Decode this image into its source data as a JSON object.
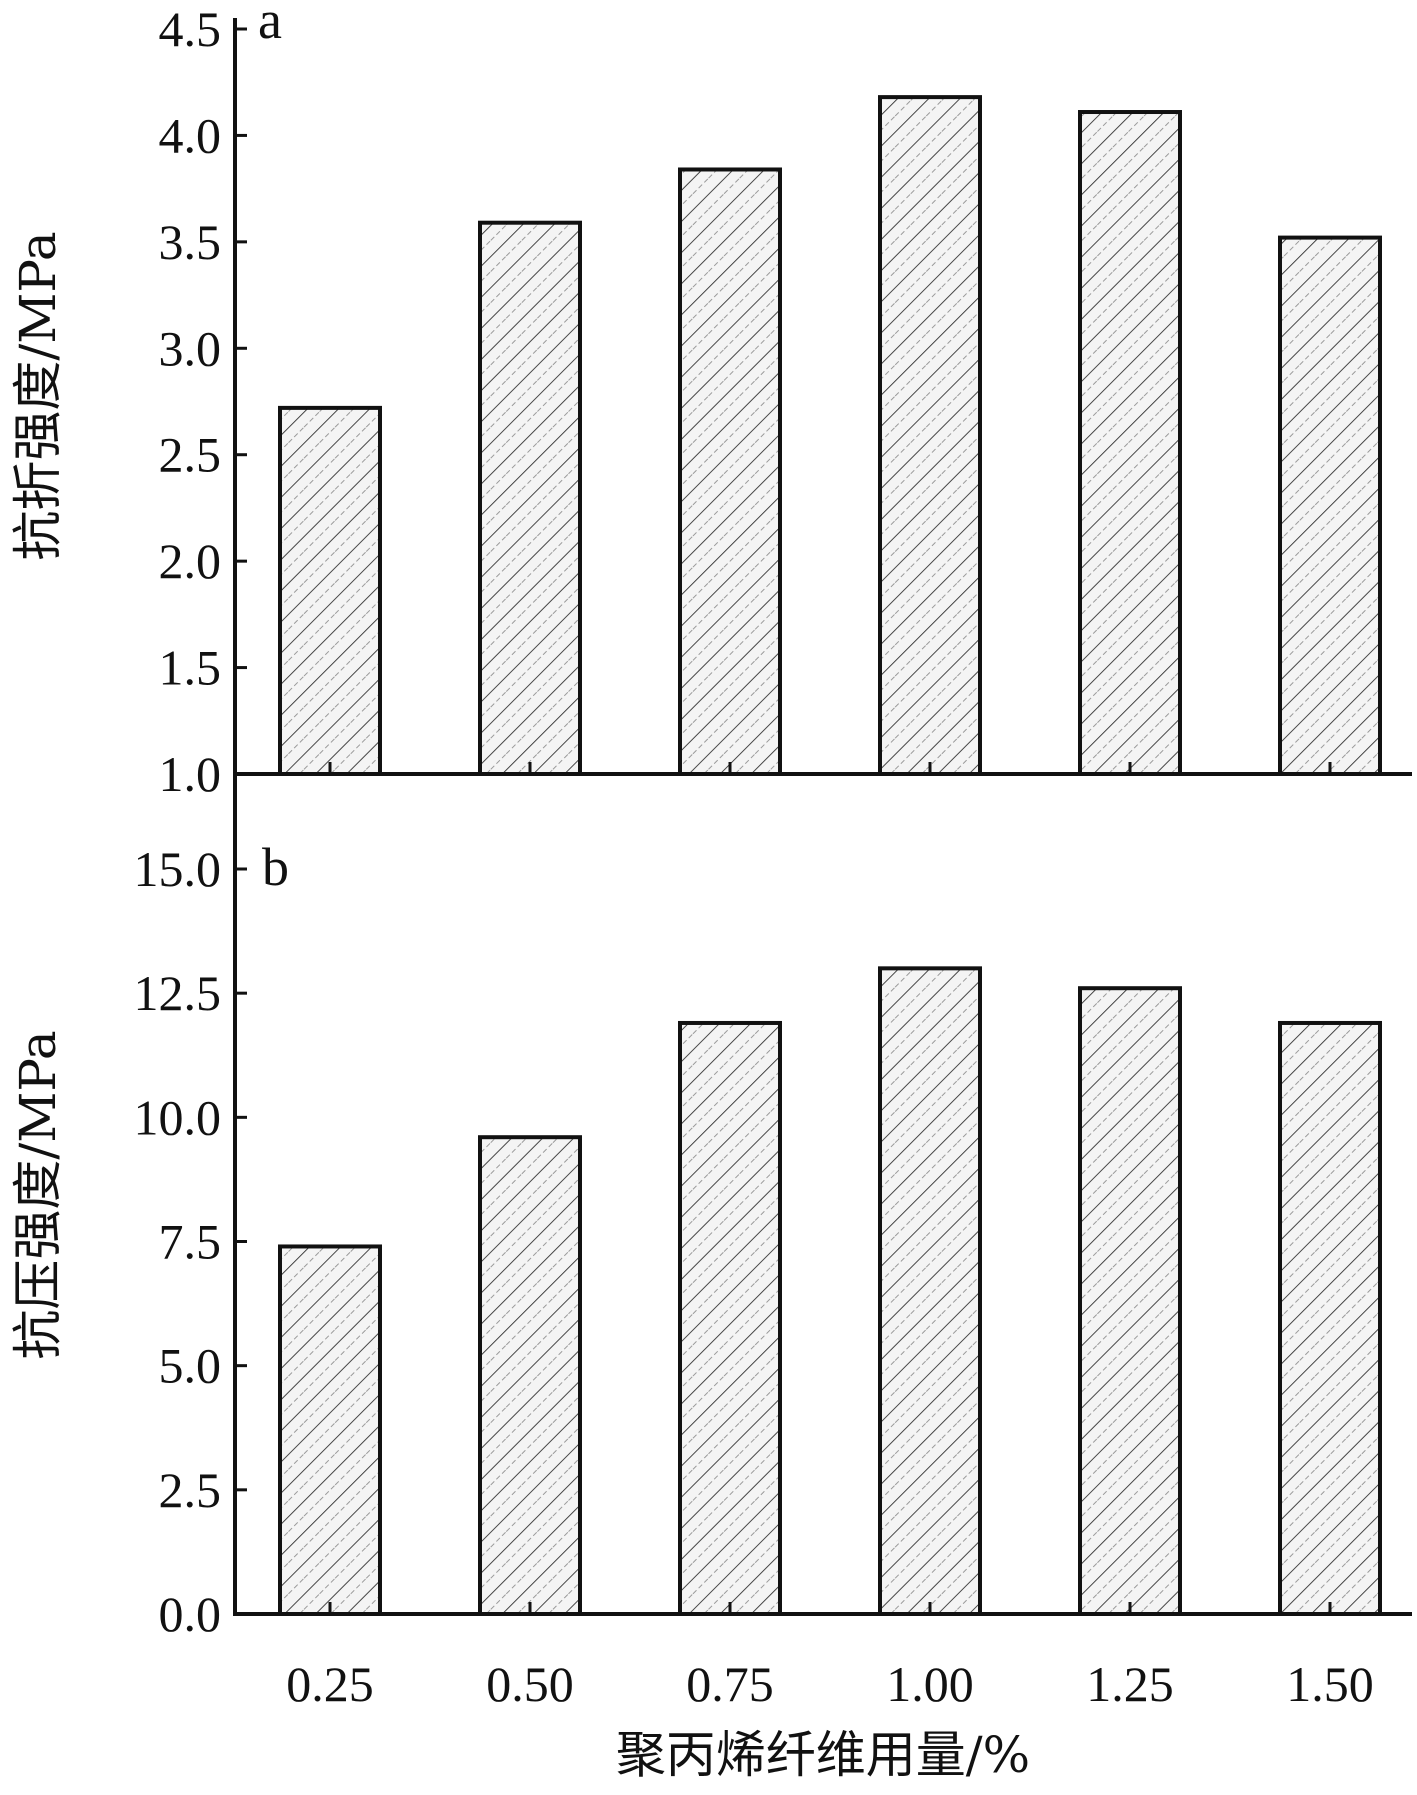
{
  "chart_data": [
    {
      "type": "bar",
      "panel_label": "a",
      "categories": [
        "0.25",
        "0.50",
        "0.75",
        "1.00",
        "1.25",
        "1.50"
      ],
      "values": [
        2.72,
        3.59,
        3.84,
        4.18,
        4.11,
        3.52
      ],
      "ylabel": "抗折强度/MPa",
      "xlabel": "",
      "ylim": [
        1.0,
        4.5
      ],
      "yticks": [
        "1.0",
        "1.5",
        "2.0",
        "2.5",
        "3.0",
        "3.5",
        "4.0",
        "4.5"
      ],
      "grid": false,
      "bar_fill": "hatched"
    },
    {
      "type": "bar",
      "panel_label": "b",
      "categories": [
        "0.25",
        "0.50",
        "0.75",
        "1.00",
        "1.25",
        "1.50"
      ],
      "values": [
        7.4,
        9.6,
        11.9,
        13.0,
        12.6,
        11.9
      ],
      "ylabel": "抗压强度/MPa",
      "xlabel": "聚丙烯纤维用量/%",
      "ylim": [
        0.0,
        15.0
      ],
      "yticks": [
        "0.0",
        "2.5",
        "5.0",
        "7.5",
        "10.0",
        "12.5",
        "15.0"
      ],
      "grid": false,
      "bar_fill": "hatched"
    }
  ],
  "colors": {
    "ink": "#111111",
    "hatch": "#333333",
    "bar_bg": "#f4f4f4"
  }
}
